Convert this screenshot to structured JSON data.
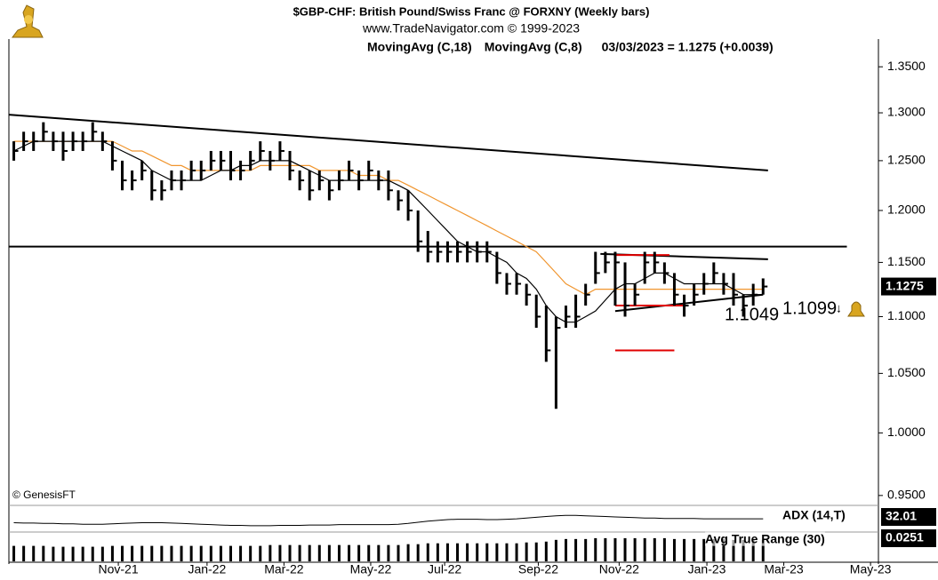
{
  "chart_data": [
    {
      "type": "ohlc",
      "title": "$GBP-CHF:  British Pound/Swiss Franc @ FORXNY  (Weekly bars)",
      "subtitle": "www.TradeNavigator.com © 1999-2023",
      "status": "03/03/2023 = 1.1275 (+0.0039)",
      "credit": "© GenesisFT",
      "log_scale": true,
      "color": "#000000",
      "categories": [
        null,
        null,
        null,
        null,
        null,
        null,
        null,
        null,
        null,
        null,
        null,
        null,
        null,
        null,
        null,
        null,
        null,
        null,
        null,
        null,
        null,
        null,
        null,
        null,
        null,
        null,
        null,
        null,
        null,
        null,
        null,
        null,
        null,
        null,
        null,
        null,
        null,
        null,
        null,
        null,
        null,
        null,
        null,
        null,
        null,
        null,
        null,
        null,
        null,
        null,
        null,
        null,
        null,
        null,
        null,
        null,
        null,
        null,
        null,
        null,
        null,
        null,
        null,
        null,
        null,
        null,
        null,
        null,
        null,
        null,
        null,
        null,
        null,
        null,
        null,
        null,
        null
      ],
      "high": [
        1.27,
        1.28,
        1.28,
        1.29,
        1.28,
        1.28,
        1.28,
        1.28,
        1.29,
        1.28,
        1.27,
        1.25,
        1.24,
        1.25,
        1.24,
        1.23,
        1.24,
        1.24,
        1.25,
        1.25,
        1.26,
        1.26,
        1.26,
        1.25,
        1.26,
        1.27,
        1.26,
        1.27,
        1.26,
        1.24,
        1.24,
        1.24,
        1.23,
        1.24,
        1.25,
        1.24,
        1.25,
        1.24,
        1.24,
        1.22,
        1.22,
        1.2,
        1.18,
        1.17,
        1.17,
        1.17,
        1.17,
        1.17,
        1.17,
        1.16,
        1.14,
        1.14,
        1.13,
        1.12,
        1.11,
        1.1,
        1.11,
        1.12,
        1.13,
        1.16,
        1.16,
        1.16,
        1.15,
        1.13,
        1.16,
        1.16,
        1.15,
        1.14,
        1.12,
        1.13,
        1.14,
        1.15,
        1.14,
        1.14,
        1.12,
        1.13,
        1.135
      ],
      "low": [
        1.25,
        1.26,
        1.26,
        1.27,
        1.26,
        1.25,
        1.26,
        1.26,
        1.27,
        1.26,
        1.24,
        1.22,
        1.22,
        1.23,
        1.21,
        1.21,
        1.22,
        1.22,
        1.23,
        1.23,
        1.24,
        1.24,
        1.23,
        1.23,
        1.24,
        1.25,
        1.24,
        1.25,
        1.23,
        1.22,
        1.21,
        1.22,
        1.21,
        1.22,
        1.23,
        1.22,
        1.23,
        1.22,
        1.21,
        1.2,
        1.19,
        1.16,
        1.15,
        1.15,
        1.15,
        1.15,
        1.15,
        1.15,
        1.15,
        1.13,
        1.12,
        1.12,
        1.11,
        1.09,
        1.06,
        1.02,
        1.09,
        1.09,
        1.11,
        1.13,
        1.14,
        1.11,
        1.1,
        1.11,
        1.13,
        1.14,
        1.13,
        1.11,
        1.1,
        1.11,
        1.12,
        1.13,
        1.12,
        1.11,
        1.1,
        1.11,
        1.12
      ],
      "close": [
        1.26,
        1.27,
        1.27,
        1.28,
        1.27,
        1.26,
        1.27,
        1.27,
        1.28,
        1.27,
        1.25,
        1.23,
        1.23,
        1.24,
        1.22,
        1.22,
        1.23,
        1.23,
        1.24,
        1.24,
        1.25,
        1.25,
        1.24,
        1.24,
        1.25,
        1.26,
        1.25,
        1.26,
        1.24,
        1.23,
        1.22,
        1.23,
        1.22,
        1.23,
        1.24,
        1.23,
        1.24,
        1.23,
        1.22,
        1.21,
        1.2,
        1.17,
        1.16,
        1.16,
        1.16,
        1.16,
        1.16,
        1.16,
        1.16,
        1.14,
        1.13,
        1.13,
        1.12,
        1.1,
        1.07,
        1.09,
        1.1,
        1.1,
        1.12,
        1.14,
        1.15,
        1.15,
        1.11,
        1.12,
        1.15,
        1.15,
        1.14,
        1.12,
        1.11,
        1.12,
        1.13,
        1.14,
        1.13,
        1.12,
        1.11,
        1.12,
        1.1275
      ],
      "series": [
        {
          "name": "MovingAvg (C,18)",
          "color": "#f0952e",
          "values": [
            1.27,
            1.27,
            1.27,
            1.27,
            1.27,
            1.27,
            1.27,
            1.27,
            1.27,
            1.27,
            1.27,
            1.265,
            1.26,
            1.26,
            1.255,
            1.25,
            1.245,
            1.245,
            1.24,
            1.24,
            1.24,
            1.24,
            1.24,
            1.24,
            1.24,
            1.245,
            1.245,
            1.245,
            1.245,
            1.245,
            1.245,
            1.24,
            1.24,
            1.24,
            1.24,
            1.235,
            1.235,
            1.235,
            1.23,
            1.23,
            1.225,
            1.22,
            1.215,
            1.21,
            1.205,
            1.2,
            1.195,
            1.19,
            1.185,
            1.18,
            1.175,
            1.17,
            1.165,
            1.16,
            1.15,
            1.14,
            1.13,
            1.125,
            1.12,
            1.125,
            1.125,
            1.125,
            1.125,
            1.125,
            1.125,
            1.125,
            1.125,
            1.125,
            1.125,
            1.125,
            1.125,
            1.125,
            1.125,
            1.125,
            1.125,
            1.125,
            1.125
          ]
        },
        {
          "name": "MovingAvg (C,8)",
          "color": "#000000",
          "values": [
            1.26,
            1.265,
            1.27,
            1.27,
            1.27,
            1.27,
            1.27,
            1.27,
            1.27,
            1.27,
            1.265,
            1.26,
            1.255,
            1.25,
            1.24,
            1.235,
            1.23,
            1.23,
            1.23,
            1.23,
            1.235,
            1.24,
            1.24,
            1.245,
            1.245,
            1.25,
            1.25,
            1.25,
            1.25,
            1.245,
            1.24,
            1.235,
            1.23,
            1.23,
            1.23,
            1.23,
            1.23,
            1.23,
            1.23,
            1.225,
            1.22,
            1.21,
            1.2,
            1.19,
            1.18,
            1.17,
            1.165,
            1.16,
            1.16,
            1.155,
            1.15,
            1.14,
            1.135,
            1.125,
            1.11,
            1.1,
            1.095,
            1.095,
            1.1,
            1.105,
            1.115,
            1.125,
            1.13,
            1.13,
            1.135,
            1.14,
            1.14,
            1.135,
            1.13,
            1.13,
            1.13,
            1.13,
            1.13,
            1.125,
            1.12,
            1.12,
            1.12
          ]
        }
      ],
      "lines": [
        {
          "color": "#000000",
          "points": [
            [
              -0.5,
              1.298
            ],
            [
              76.5,
              1.24
            ]
          ]
        },
        {
          "color": "#000000",
          "points": [
            [
              -0.5,
              1.165
            ],
            [
              84.5,
              1.165
            ]
          ]
        },
        {
          "color": "#000000",
          "points": [
            [
              59.5,
              1.158
            ],
            [
              76.5,
              1.153
            ]
          ]
        },
        {
          "color": "#000000",
          "points": [
            [
              61,
              1.105
            ],
            [
              76,
              1.12
            ]
          ]
        },
        {
          "color": "#e00000",
          "points": [
            [
              61,
              1.157
            ],
            [
              66.5,
              1.157
            ]
          ]
        },
        {
          "color": "#e00000",
          "points": [
            [
              61,
              1.11
            ],
            [
              68,
              1.11
            ]
          ]
        },
        {
          "color": "#e00000",
          "points": [
            [
              61,
              1.07
            ],
            [
              67,
              1.07
            ]
          ]
        }
      ],
      "annotations": [
        "1.1099",
        "1.1049"
      ],
      "xlim": [
        -0.5,
        87.7
      ],
      "ylim": [
        0.943,
        1.38
      ],
      "yticks": [
        {
          "value": 0.95,
          "label": "0.9500"
        },
        {
          "value": 1.0,
          "label": "1.0000"
        },
        {
          "value": 1.05,
          "label": "1.0500"
        },
        {
          "value": 1.1,
          "label": "1.1000"
        },
        {
          "value": 1.15,
          "label": "1.1500"
        },
        {
          "value": 1.2,
          "label": "1.2000"
        },
        {
          "value": 1.25,
          "label": "1.2500"
        },
        {
          "value": 1.3,
          "label": "1.3000"
        },
        {
          "value": 1.35,
          "label": "1.3500"
        }
      ]
    },
    {
      "type": "line",
      "name": "ADX (14,T)",
      "color": "#000000",
      "categories": [
        null,
        null,
        null,
        null,
        null,
        null,
        null,
        null,
        null,
        null,
        null,
        null,
        null,
        null,
        null,
        null,
        null,
        null,
        null,
        null,
        null,
        null,
        null,
        null,
        null,
        null,
        null,
        null,
        null,
        null,
        null,
        null,
        null,
        null,
        null,
        null,
        null,
        null,
        null,
        null,
        null,
        null,
        null,
        null,
        null,
        null,
        null,
        null,
        null,
        null,
        null,
        null,
        null,
        null,
        null,
        null,
        null,
        null,
        null,
        null,
        null,
        null,
        null,
        null,
        null,
        null,
        null,
        null,
        null,
        null,
        null,
        null,
        null,
        null,
        null,
        null,
        null
      ],
      "values": [
        22,
        21,
        21,
        20,
        20,
        19,
        19,
        18,
        18,
        18,
        19,
        20,
        21,
        22,
        22,
        22,
        21,
        20,
        19,
        18,
        17,
        16,
        15,
        15,
        14,
        14,
        14,
        15,
        15,
        15,
        16,
        16,
        16,
        17,
        17,
        17,
        17,
        17,
        17,
        18,
        20,
        23,
        26,
        28,
        30,
        31,
        31,
        31,
        30,
        30,
        31,
        32,
        34,
        36,
        38,
        40,
        41,
        41,
        40,
        39,
        38,
        37,
        36,
        35,
        34,
        34,
        33,
        33,
        33,
        33,
        32,
        32,
        32,
        32,
        32,
        32,
        32.01
      ],
      "xlim": [
        -0.5,
        87.7
      ],
      "ylim": [
        0,
        60
      ]
    },
    {
      "type": "bar",
      "name": "Avg True Range (30)",
      "color": "#000000",
      "categories": [
        null,
        null,
        null,
        null,
        null,
        null,
        null,
        null,
        null,
        null,
        null,
        null,
        null,
        null,
        null,
        null,
        null,
        null,
        null,
        null,
        null,
        null,
        null,
        null,
        null,
        null,
        null,
        null,
        null,
        null,
        null,
        null,
        null,
        null,
        null,
        null,
        null,
        null,
        null,
        null,
        null,
        null,
        null,
        null,
        null,
        null,
        null,
        null,
        null,
        null,
        null,
        null,
        null,
        null,
        null,
        null,
        null,
        null,
        null,
        null,
        null,
        null,
        null,
        null,
        null,
        null,
        null,
        null,
        null,
        null,
        null,
        null,
        null,
        null,
        null,
        null,
        null
      ],
      "values": [
        0.018,
        0.018,
        0.018,
        0.018,
        0.017,
        0.017,
        0.017,
        0.017,
        0.017,
        0.017,
        0.018,
        0.018,
        0.018,
        0.018,
        0.018,
        0.018,
        0.018,
        0.018,
        0.018,
        0.018,
        0.018,
        0.018,
        0.018,
        0.018,
        0.018,
        0.018,
        0.019,
        0.019,
        0.019,
        0.019,
        0.019,
        0.019,
        0.019,
        0.019,
        0.019,
        0.019,
        0.019,
        0.019,
        0.019,
        0.019,
        0.02,
        0.02,
        0.021,
        0.021,
        0.021,
        0.021,
        0.021,
        0.021,
        0.021,
        0.021,
        0.021,
        0.021,
        0.022,
        0.022,
        0.023,
        0.025,
        0.026,
        0.026,
        0.026,
        0.027,
        0.027,
        0.027,
        0.027,
        0.027,
        0.027,
        0.027,
        0.027,
        0.026,
        0.026,
        0.026,
        0.026,
        0.026,
        0.026,
        0.025,
        0.025,
        0.025,
        0.0251
      ],
      "xlim": [
        -0.5,
        87.7
      ],
      "ylim": [
        0,
        0.03
      ],
      "xticks": [
        {
          "value": 10.6,
          "label": "Nov-21"
        },
        {
          "value": 19.6,
          "label": "Jan-22"
        },
        {
          "value": 27.4,
          "label": "Mar-22"
        },
        {
          "value": 36.2,
          "label": "May-22"
        },
        {
          "value": 43.7,
          "label": "Jul-22"
        },
        {
          "value": 53.2,
          "label": "Sep-22"
        },
        {
          "value": 61.4,
          "label": "Nov-22"
        },
        {
          "value": 70.3,
          "label": "Jan-23"
        },
        {
          "value": 78.1,
          "label": "Mar-23"
        },
        {
          "value": 86.9,
          "label": "May-23"
        }
      ]
    }
  ]
}
